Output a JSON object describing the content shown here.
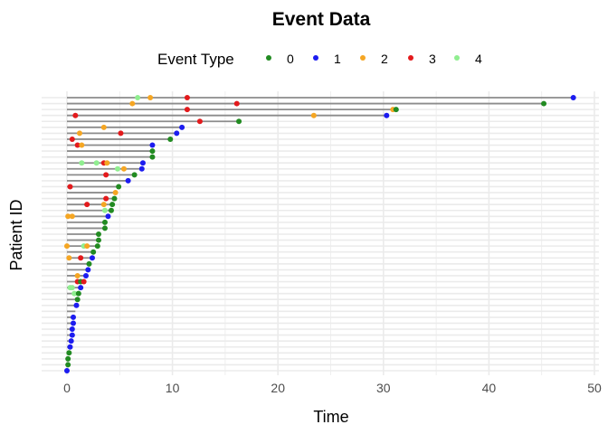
{
  "chart_data": {
    "type": "scatter",
    "title": "Event Data",
    "xlabel": "Time",
    "ylabel": "Patient ID",
    "xlim": [
      0,
      50
    ],
    "x_ticks": [
      "0",
      "10",
      "20",
      "30",
      "40",
      "50"
    ],
    "grid": true,
    "legend": {
      "title": "Event Type",
      "position": "top",
      "entries": [
        {
          "label": "0",
          "color": "#228b22"
        },
        {
          "label": "1",
          "color": "#1c1cf0"
        },
        {
          "label": "2",
          "color": "#f5a623"
        },
        {
          "label": "3",
          "color": "#e31a1c"
        },
        {
          "label": "4",
          "color": "#90ee90"
        }
      ]
    },
    "patients": [
      {
        "id": 1,
        "followup": 48.0,
        "events": [
          {
            "time": 6.7,
            "type": "4"
          },
          {
            "time": 7.9,
            "type": "2"
          },
          {
            "time": 11.4,
            "type": "3"
          },
          {
            "time": 48.0,
            "type": "1"
          }
        ]
      },
      {
        "id": 2,
        "followup": 45.2,
        "events": [
          {
            "time": 6.2,
            "type": "2"
          },
          {
            "time": 16.1,
            "type": "3"
          },
          {
            "time": 45.2,
            "type": "0"
          }
        ]
      },
      {
        "id": 3,
        "followup": 31.2,
        "events": [
          {
            "time": 11.4,
            "type": "3"
          },
          {
            "time": 30.9,
            "type": "2"
          },
          {
            "time": 31.2,
            "type": "0"
          }
        ]
      },
      {
        "id": 4,
        "followup": 30.3,
        "events": [
          {
            "time": 0.8,
            "type": "3"
          },
          {
            "time": 23.4,
            "type": "2"
          },
          {
            "time": 30.3,
            "type": "1"
          }
        ]
      },
      {
        "id": 5,
        "followup": 16.3,
        "events": [
          {
            "time": 12.6,
            "type": "3"
          },
          {
            "time": 16.3,
            "type": "0"
          }
        ]
      },
      {
        "id": 6,
        "followup": 10.9,
        "events": [
          {
            "time": 3.5,
            "type": "2"
          },
          {
            "time": 10.9,
            "type": "1"
          }
        ]
      },
      {
        "id": 7,
        "followup": 10.4,
        "events": [
          {
            "time": 1.2,
            "type": "2"
          },
          {
            "time": 5.1,
            "type": "3"
          },
          {
            "time": 10.4,
            "type": "1"
          }
        ]
      },
      {
        "id": 8,
        "followup": 9.8,
        "events": [
          {
            "time": 0.5,
            "type": "3"
          },
          {
            "time": 9.8,
            "type": "0"
          }
        ]
      },
      {
        "id": 9,
        "followup": 8.1,
        "events": [
          {
            "time": 1.0,
            "type": "3"
          },
          {
            "time": 1.4,
            "type": "2"
          },
          {
            "time": 8.1,
            "type": "1"
          }
        ]
      },
      {
        "id": 10,
        "followup": 8.1,
        "events": [
          {
            "time": 8.1,
            "type": "0"
          }
        ]
      },
      {
        "id": 11,
        "followup": 8.1,
        "events": [
          {
            "time": 8.1,
            "type": "0"
          }
        ]
      },
      {
        "id": 12,
        "followup": 7.2,
        "events": [
          {
            "time": 1.4,
            "type": "4"
          },
          {
            "time": 2.8,
            "type": "4"
          },
          {
            "time": 3.5,
            "type": "3"
          },
          {
            "time": 3.8,
            "type": "2"
          },
          {
            "time": 7.2,
            "type": "1"
          }
        ]
      },
      {
        "id": 13,
        "followup": 7.1,
        "events": [
          {
            "time": 4.8,
            "type": "4"
          },
          {
            "time": 5.4,
            "type": "2"
          },
          {
            "time": 7.1,
            "type": "1"
          }
        ]
      },
      {
        "id": 14,
        "followup": 6.4,
        "events": [
          {
            "time": 3.7,
            "type": "3"
          },
          {
            "time": 6.4,
            "type": "0"
          }
        ]
      },
      {
        "id": 15,
        "followup": 5.8,
        "events": [
          {
            "time": 5.8,
            "type": "1"
          }
        ]
      },
      {
        "id": 16,
        "followup": 4.9,
        "events": [
          {
            "time": 0.3,
            "type": "3"
          },
          {
            "time": 4.9,
            "type": "0"
          }
        ]
      },
      {
        "id": 17,
        "followup": 4.6,
        "events": [
          {
            "time": 4.6,
            "type": "2"
          }
        ]
      },
      {
        "id": 18,
        "followup": 4.5,
        "events": [
          {
            "time": 3.7,
            "type": "3"
          },
          {
            "time": 4.5,
            "type": "0"
          }
        ]
      },
      {
        "id": 19,
        "followup": 4.3,
        "events": [
          {
            "time": 1.9,
            "type": "3"
          },
          {
            "time": 3.5,
            "type": "2"
          },
          {
            "time": 4.3,
            "type": "0"
          }
        ]
      },
      {
        "id": 20,
        "followup": 4.2,
        "events": [
          {
            "time": 3.6,
            "type": "4"
          },
          {
            "time": 4.2,
            "type": "0"
          }
        ]
      },
      {
        "id": 21,
        "followup": 3.9,
        "events": [
          {
            "time": 0.1,
            "type": "2"
          },
          {
            "time": 0.5,
            "type": "2"
          },
          {
            "time": 3.9,
            "type": "1"
          }
        ]
      },
      {
        "id": 22,
        "followup": 3.6,
        "events": [
          {
            "time": 3.6,
            "type": "0"
          }
        ]
      },
      {
        "id": 23,
        "followup": 3.6,
        "events": [
          {
            "time": 3.6,
            "type": "0"
          }
        ]
      },
      {
        "id": 24,
        "followup": 3.0,
        "events": [
          {
            "time": 3.0,
            "type": "0"
          }
        ]
      },
      {
        "id": 25,
        "followup": 3.0,
        "events": [
          {
            "time": 3.0,
            "type": "0"
          }
        ]
      },
      {
        "id": 26,
        "followup": 2.9,
        "events": [
          {
            "time": 0.0,
            "type": "2"
          },
          {
            "time": 1.6,
            "type": "4"
          },
          {
            "time": 1.9,
            "type": "2"
          },
          {
            "time": 2.9,
            "type": "0"
          }
        ]
      },
      {
        "id": 27,
        "followup": 2.5,
        "events": [
          {
            "time": 2.5,
            "type": "0"
          }
        ]
      },
      {
        "id": 28,
        "followup": 2.4,
        "events": [
          {
            "time": 0.2,
            "type": "2"
          },
          {
            "time": 1.3,
            "type": "3"
          },
          {
            "time": 2.4,
            "type": "1"
          }
        ]
      },
      {
        "id": 29,
        "followup": 2.1,
        "events": [
          {
            "time": 2.1,
            "type": "0"
          }
        ]
      },
      {
        "id": 30,
        "followup": 2.0,
        "events": [
          {
            "time": 2.0,
            "type": "1"
          }
        ]
      },
      {
        "id": 31,
        "followup": 1.8,
        "events": [
          {
            "time": 1.0,
            "type": "2"
          },
          {
            "time": 1.8,
            "type": "1"
          }
        ]
      },
      {
        "id": 32,
        "followup": 1.6,
        "events": [
          {
            "time": 1.0,
            "type": "3"
          },
          {
            "time": 1.3,
            "type": "0"
          },
          {
            "time": 1.6,
            "type": "3"
          }
        ]
      },
      {
        "id": 33,
        "followup": 1.3,
        "events": [
          {
            "time": 0.3,
            "type": "4"
          },
          {
            "time": 0.5,
            "type": "4"
          },
          {
            "time": 1.3,
            "type": "1"
          }
        ]
      },
      {
        "id": 34,
        "followup": 1.1,
        "events": [
          {
            "time": 0.7,
            "type": "4"
          },
          {
            "time": 1.1,
            "type": "0"
          }
        ]
      },
      {
        "id": 35,
        "followup": 1.0,
        "events": [
          {
            "time": 1.0,
            "type": "0"
          }
        ]
      },
      {
        "id": 36,
        "followup": 0.9,
        "events": [
          {
            "time": 0.9,
            "type": "1"
          }
        ]
      },
      {
        "id": 37,
        "followup": 0.8,
        "events": []
      },
      {
        "id": 38,
        "followup": 0.6,
        "events": [
          {
            "time": 0.6,
            "type": "1"
          }
        ]
      },
      {
        "id": 39,
        "followup": 0.6,
        "events": [
          {
            "time": 0.6,
            "type": "1"
          }
        ]
      },
      {
        "id": 40,
        "followup": 0.5,
        "events": [
          {
            "time": 0.5,
            "type": "1"
          }
        ]
      },
      {
        "id": 41,
        "followup": 0.5,
        "events": [
          {
            "time": 0.5,
            "type": "1"
          }
        ]
      },
      {
        "id": 42,
        "followup": 0.4,
        "events": [
          {
            "time": 0.4,
            "type": "1"
          }
        ]
      },
      {
        "id": 43,
        "followup": 0.3,
        "events": [
          {
            "time": 0.3,
            "type": "1"
          }
        ]
      },
      {
        "id": 44,
        "followup": 0.2,
        "events": [
          {
            "time": 0.2,
            "type": "0"
          }
        ]
      },
      {
        "id": 45,
        "followup": 0.1,
        "events": [
          {
            "time": 0.1,
            "type": "0"
          }
        ]
      },
      {
        "id": 46,
        "followup": 0.1,
        "events": [
          {
            "time": 0.1,
            "type": "0"
          }
        ]
      },
      {
        "id": 47,
        "followup": 0.0,
        "events": [
          {
            "time": 0.0,
            "type": "1"
          }
        ]
      }
    ]
  }
}
